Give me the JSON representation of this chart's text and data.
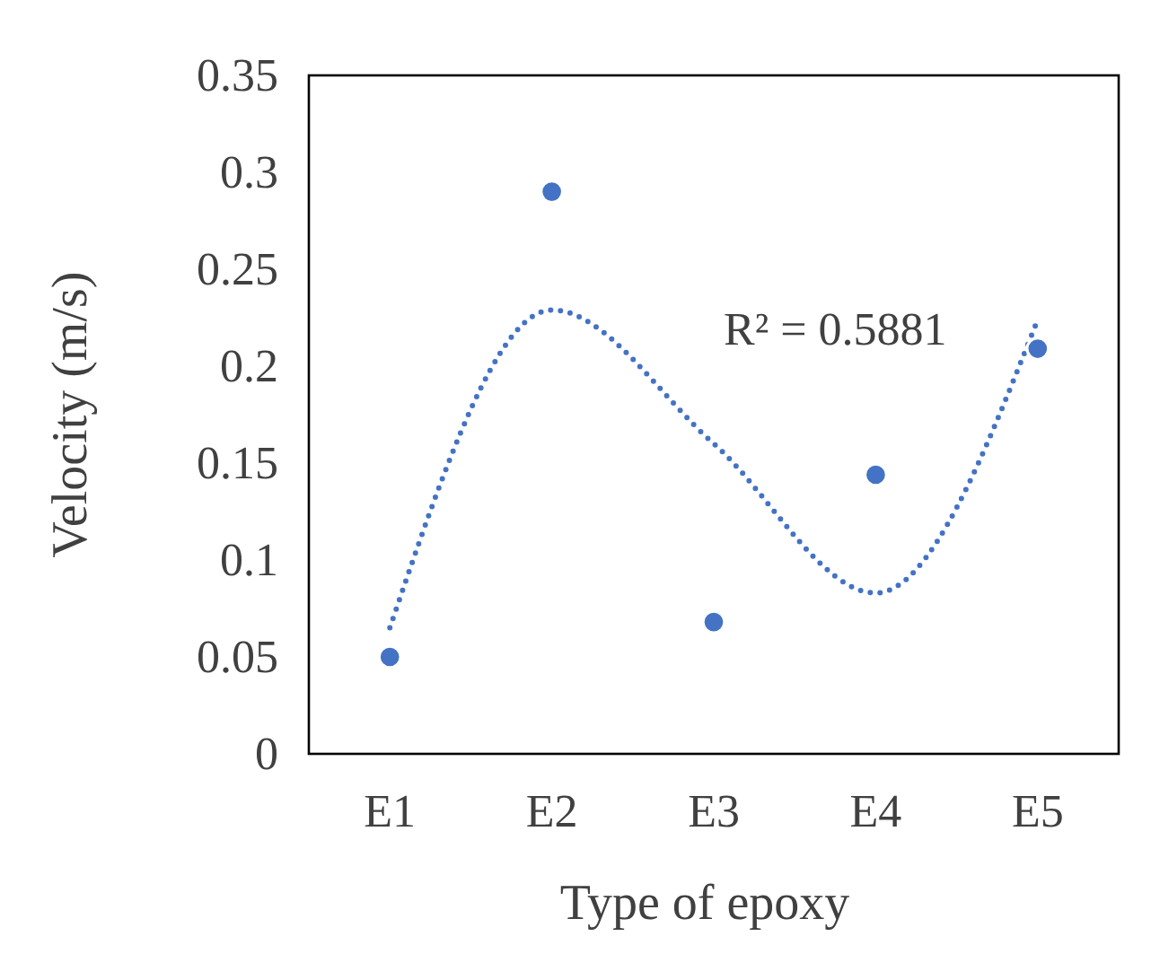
{
  "chart_data": {
    "type": "scatter",
    "xlabel": "Type of epoxy",
    "ylabel": "Velocity (m/s)",
    "categories": [
      "E1",
      "E2",
      "E3",
      "E4",
      "E5"
    ],
    "ylim": [
      0,
      0.35
    ],
    "yticks": [
      0,
      0.05,
      0.1,
      0.15,
      0.2,
      0.25,
      0.3,
      0.35
    ],
    "grid": false,
    "marker": "circle",
    "annotations": [
      "R² = 0.5881"
    ],
    "series": [
      {
        "color": "#4472c4",
        "values": [
          0.05,
          0.29,
          0.068,
          0.144,
          0.209
        ]
      },
      {
        "type": "line",
        "color": "#4472c4",
        "line_style": "dotted",
        "marker": "none",
        "values": [
          0.065,
          0.229,
          0.16,
          0.083,
          0.224
        ]
      }
    ]
  }
}
